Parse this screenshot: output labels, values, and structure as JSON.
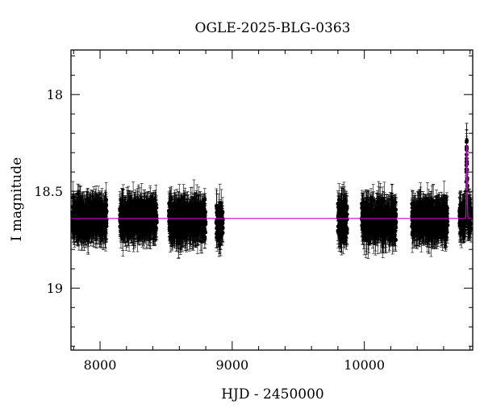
{
  "chart_data": {
    "type": "scatter",
    "title": "OGLE-2025-BLG-0363",
    "xlabel": "HJD - 2450000",
    "ylabel": "I magnitude",
    "xlim": [
      7780,
      10820
    ],
    "ylim": [
      19.32,
      17.77
    ],
    "y_inverted": true,
    "x_ticks_major": [
      8000,
      9000,
      10000
    ],
    "x_tick_labels": [
      "8000",
      "9000",
      "10000"
    ],
    "x_ticks_minor_step": 200,
    "y_ticks_major": [
      18,
      18.5,
      19
    ],
    "y_tick_labels": [
      "18",
      "18.5",
      "19"
    ],
    "y_ticks_minor_step": 0.1,
    "grid": false,
    "legend": "none",
    "baseline_magnitude": 18.64,
    "observing_seasons": [
      {
        "start": 7790,
        "end": 8050,
        "mean_mag": 18.64,
        "scatter": 0.075
      },
      {
        "start": 8150,
        "end": 8430,
        "mean_mag": 18.64,
        "scatter": 0.075
      },
      {
        "start": 8520,
        "end": 8800,
        "mean_mag": 18.65,
        "scatter": 0.08
      },
      {
        "start": 8880,
        "end": 8930,
        "mean_mag": 18.66,
        "scatter": 0.07
      },
      {
        "start": 9800,
        "end": 9870,
        "mean_mag": 18.65,
        "scatter": 0.09
      },
      {
        "start": 9980,
        "end": 10240,
        "mean_mag": 18.65,
        "scatter": 0.08
      },
      {
        "start": 10360,
        "end": 10630,
        "mean_mag": 18.65,
        "scatter": 0.075
      },
      {
        "start": 10720,
        "end": 10810,
        "mean_mag": 18.64,
        "scatter": 0.06
      }
    ],
    "event": {
      "t0": 10775,
      "tE": 3,
      "peak_mag": 18.26
    },
    "series": [
      {
        "kind": "points",
        "color": "#000000"
      },
      {
        "kind": "model",
        "color": "#cc00cc"
      }
    ]
  }
}
